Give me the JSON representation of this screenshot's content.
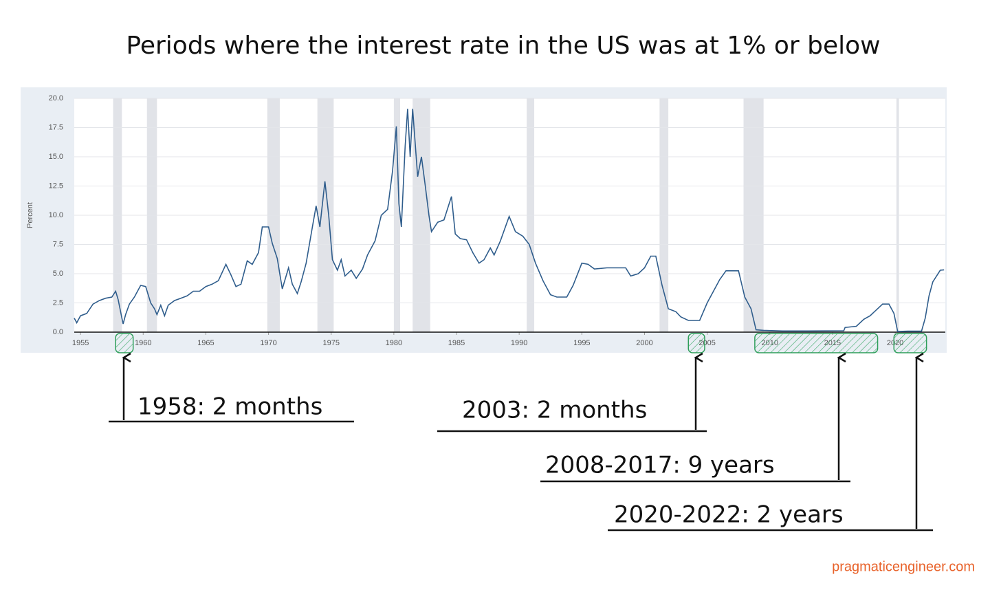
{
  "chart_data": {
    "type": "line",
    "title": "Periods where the interest rate in the US was at 1% or below",
    "y_label": "Percent",
    "color": "#2f5d8c",
    "grid": true,
    "xlim": [
      1954.5,
      2024.0
    ],
    "xticks": [
      1955,
      1960,
      1965,
      1970,
      1975,
      1980,
      1985,
      1990,
      1995,
      2000,
      2005,
      2010,
      2015,
      2020
    ],
    "ylim": [
      0,
      20
    ],
    "yticks": [
      {
        "value": 0,
        "label": "0.0"
      },
      2.5,
      {
        "value": 5,
        "label": "5.0"
      },
      7.5,
      {
        "value": 10,
        "label": "10.0"
      },
      12.5,
      {
        "value": 15,
        "label": "15.0"
      },
      17.5,
      {
        "value": 20,
        "label": "20.0"
      }
    ],
    "recessions": [
      [
        1957.6,
        1958.3
      ],
      [
        1960.3,
        1961.1
      ],
      [
        1969.9,
        1970.9
      ],
      [
        1973.9,
        1975.2
      ],
      [
        1980.0,
        1980.5
      ],
      [
        1981.5,
        1982.9
      ],
      [
        1990.6,
        1991.2
      ],
      [
        2001.2,
        2001.9
      ],
      [
        2007.9,
        2009.5
      ],
      [
        2020.1,
        2020.3
      ]
    ],
    "x": [
      1954.5,
      1954.7,
      1955.0,
      1955.5,
      1956.0,
      1956.5,
      1957.0,
      1957.5,
      1957.8,
      1958.0,
      1958.3,
      1958.4,
      1958.6,
      1958.9,
      1959.3,
      1959.8,
      1960.2,
      1960.6,
      1960.9,
      1961.1,
      1961.4,
      1961.7,
      1962.0,
      1962.5,
      1963.0,
      1963.5,
      1964.0,
      1964.5,
      1965.0,
      1965.5,
      1966.0,
      1966.6,
      1967.0,
      1967.4,
      1967.8,
      1968.3,
      1968.7,
      1969.2,
      1969.5,
      1970.0,
      1970.3,
      1970.7,
      1971.1,
      1971.6,
      1971.9,
      1972.3,
      1972.6,
      1973.0,
      1973.5,
      1973.8,
      1974.1,
      1974.5,
      1974.8,
      1975.1,
      1975.5,
      1975.8,
      1976.1,
      1976.6,
      1977.0,
      1977.5,
      1977.9,
      1978.5,
      1979.0,
      1979.5,
      1979.9,
      1980.2,
      1980.4,
      1980.6,
      1980.9,
      1981.1,
      1981.3,
      1981.5,
      1981.9,
      1982.2,
      1982.5,
      1982.8,
      1983.0,
      1983.5,
      1984.0,
      1984.6,
      1984.9,
      1985.3,
      1985.8,
      1986.3,
      1986.8,
      1987.2,
      1987.7,
      1988.0,
      1988.5,
      1989.2,
      1989.7,
      1990.3,
      1990.8,
      1991.3,
      1991.9,
      1992.5,
      1993.0,
      1993.8,
      1994.3,
      1995.0,
      1995.5,
      1996.0,
      1997.0,
      1998.5,
      1998.9,
      1999.5,
      2000.0,
      2000.5,
      2000.9,
      2001.4,
      2001.9,
      2002.5,
      2002.9,
      2003.5,
      2004.4,
      2005.0,
      2006.0,
      2006.5,
      2007.5,
      2008.0,
      2008.5,
      2008.9,
      2009.5,
      2011.0,
      2013.0,
      2015.9,
      2016.0,
      2016.9,
      2017.5,
      2018.0,
      2018.5,
      2019.0,
      2019.5,
      2019.9,
      2020.2,
      2021.0,
      2022.1,
      2022.4,
      2022.7,
      2023.0,
      2023.6,
      2023.9
    ],
    "values": [
      1.2,
      0.8,
      1.4,
      1.6,
      2.4,
      2.7,
      2.9,
      3.0,
      3.5,
      2.8,
      1.2,
      0.7,
      1.5,
      2.4,
      3.0,
      4.0,
      3.9,
      2.5,
      2.0,
      1.5,
      2.3,
      1.4,
      2.3,
      2.7,
      2.9,
      3.1,
      3.5,
      3.5,
      3.9,
      4.1,
      4.4,
      5.8,
      4.9,
      3.9,
      4.1,
      6.1,
      5.8,
      6.8,
      9.0,
      9.0,
      7.6,
      6.3,
      3.7,
      5.5,
      4.1,
      3.3,
      4.3,
      5.9,
      9.0,
      10.8,
      9.0,
      12.9,
      10.0,
      6.2,
      5.3,
      6.2,
      4.8,
      5.3,
      4.6,
      5.4,
      6.6,
      7.8,
      10.0,
      10.5,
      13.8,
      17.6,
      11.0,
      9.0,
      15.9,
      19.1,
      15.0,
      19.1,
      13.3,
      15.0,
      12.6,
      10.0,
      8.6,
      9.4,
      9.6,
      11.6,
      8.4,
      8.0,
      7.9,
      6.8,
      5.9,
      6.2,
      7.2,
      6.6,
      7.8,
      9.9,
      8.6,
      8.2,
      7.5,
      5.9,
      4.4,
      3.2,
      3.0,
      3.0,
      4.0,
      5.9,
      5.8,
      5.4,
      5.5,
      5.5,
      4.8,
      5.0,
      5.5,
      6.5,
      6.5,
      4.0,
      2.0,
      1.75,
      1.3,
      1.0,
      1.0,
      2.5,
      4.5,
      5.25,
      5.25,
      3.0,
      2.0,
      0.2,
      0.15,
      0.1,
      0.1,
      0.12,
      0.4,
      0.5,
      1.1,
      1.4,
      1.9,
      2.4,
      2.4,
      1.6,
      0.05,
      0.08,
      0.08,
      1.2,
      3.1,
      4.3,
      5.3,
      5.33
    ],
    "highlights": [
      {
        "label": "1958: 2 months",
        "x": [
          1957.8,
          1959.2
        ]
      },
      {
        "label": "2003: 2 months",
        "x": [
          2003.5,
          2004.8
        ]
      },
      {
        "label": "2008-2017: 9 years",
        "x": [
          2008.8,
          2018.6
        ]
      },
      {
        "label": "2020-2022: 2 years",
        "x": [
          2019.9,
          2022.5
        ]
      }
    ],
    "source": "pragmaticengineer.com"
  }
}
